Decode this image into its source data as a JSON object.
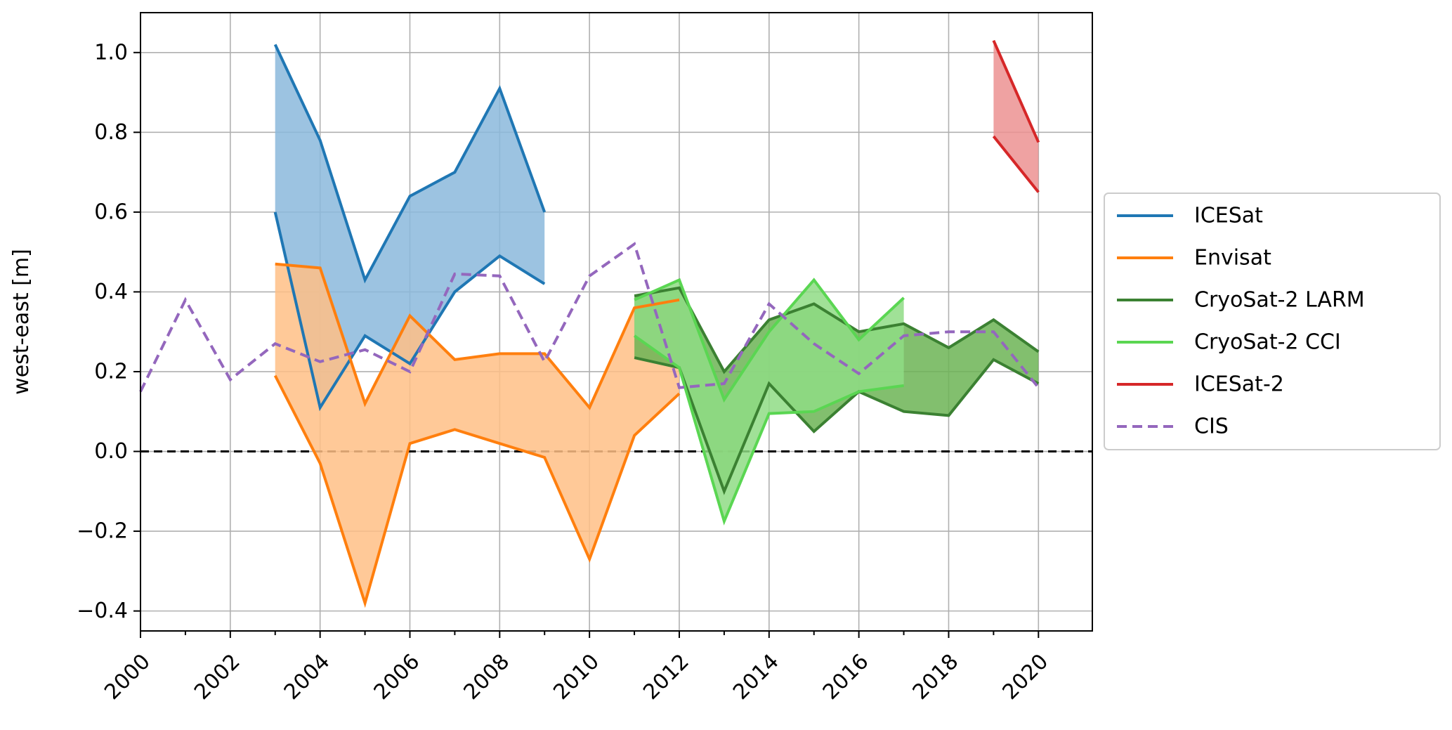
{
  "chart_data": {
    "type": "line",
    "title": "",
    "xlabel": "",
    "ylabel": "west-east [m]",
    "xlim": [
      2000,
      2021.2
    ],
    "ylim": [
      -0.45,
      1.1
    ],
    "grid": true,
    "legend_position": "right",
    "x_ticks": [
      2000,
      2002,
      2004,
      2006,
      2008,
      2010,
      2012,
      2014,
      2016,
      2018,
      2020
    ],
    "x_tick_labels": [
      "2000",
      "2002",
      "2004",
      "2006",
      "2008",
      "2010",
      "2012",
      "2014",
      "2016",
      "2018",
      "2020"
    ],
    "y_ticks": [
      -0.4,
      -0.2,
      0.0,
      0.2,
      0.4,
      0.6,
      0.8,
      1.0
    ],
    "y_tick_labels": [
      "−0.4",
      "−0.2",
      "0.0",
      "0.2",
      "0.4",
      "0.6",
      "0.8",
      "1.0"
    ],
    "reference_line": {
      "y": 0.0,
      "style": "dashed",
      "color": "#000000"
    },
    "series": [
      {
        "name": "ICESat",
        "color": "#1f77b4",
        "fill_color": "#8bb9dc",
        "kind": "band",
        "x": [
          2003,
          2004,
          2005,
          2006,
          2007,
          2008,
          2009
        ],
        "upper": [
          1.02,
          0.78,
          0.43,
          0.64,
          0.7,
          0.91,
          0.6
        ],
        "lower": [
          0.6,
          0.11,
          0.29,
          0.22,
          0.4,
          0.49,
          0.42
        ]
      },
      {
        "name": "Envisat",
        "color": "#ff7f0e",
        "fill_color": "#ffbf86",
        "kind": "band",
        "x": [
          2003,
          2004,
          2005,
          2006,
          2007,
          2008,
          2009,
          2010,
          2011,
          2012
        ],
        "upper": [
          0.47,
          0.46,
          0.12,
          0.34,
          0.23,
          0.245,
          0.245,
          0.11,
          0.36,
          0.38
        ],
        "lower": [
          0.19,
          -0.03,
          -0.38,
          0.02,
          0.055,
          0.02,
          -0.015,
          -0.27,
          0.04,
          0.145
        ]
      },
      {
        "name": "CryoSat-2 LARM",
        "color": "#3b8132",
        "fill_color": "#6cb455",
        "kind": "band",
        "x": [
          2011,
          2012,
          2013,
          2014,
          2015,
          2016,
          2017,
          2018,
          2019,
          2020
        ],
        "upper": [
          0.39,
          0.41,
          0.2,
          0.33,
          0.37,
          0.3,
          0.32,
          0.26,
          0.33,
          0.25
        ],
        "lower": [
          0.235,
          0.21,
          -0.1,
          0.17,
          0.05,
          0.15,
          0.1,
          0.09,
          0.23,
          0.17
        ]
      },
      {
        "name": "CryoSat-2 CCI",
        "color": "#5ad652",
        "fill_color": "#8fdc85",
        "kind": "band",
        "x": [
          2011,
          2012,
          2013,
          2014,
          2015,
          2016,
          2017
        ],
        "upper": [
          0.38,
          0.43,
          0.13,
          0.3,
          0.43,
          0.28,
          0.385
        ],
        "lower": [
          0.29,
          0.21,
          -0.175,
          0.095,
          0.1,
          0.15,
          0.165
        ]
      },
      {
        "name": "ICESat-2",
        "color": "#d62728",
        "fill_color": "#ec9292",
        "kind": "band",
        "x": [
          2019,
          2020
        ],
        "upper": [
          1.03,
          0.775
        ],
        "lower": [
          0.79,
          0.65
        ]
      },
      {
        "name": "CIS",
        "color": "#9467bd",
        "kind": "dashed",
        "x": [
          2000,
          2001,
          2002,
          2003,
          2004,
          2005,
          2006,
          2007,
          2008,
          2009,
          2010,
          2011,
          2012,
          2013,
          2014,
          2015,
          2016,
          2017,
          2018,
          2019,
          2020
        ],
        "values": [
          0.15,
          0.38,
          0.18,
          0.27,
          0.225,
          0.255,
          0.2,
          0.445,
          0.44,
          0.225,
          0.44,
          0.52,
          0.16,
          0.17,
          0.37,
          0.27,
          0.195,
          0.29,
          0.3,
          0.3,
          0.16
        ]
      }
    ]
  }
}
